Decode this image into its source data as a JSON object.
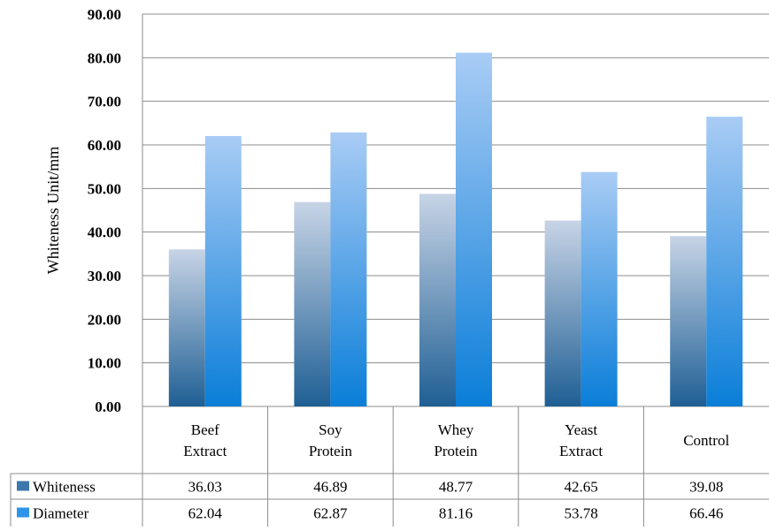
{
  "chart_data": {
    "type": "bar",
    "ylabel": "Whiteness Unit/mm",
    "ylim": [
      0,
      90
    ],
    "ytick_step": 10,
    "ytick_labels": [
      "0.00",
      "10.00",
      "20.00",
      "30.00",
      "40.00",
      "50.00",
      "60.00",
      "70.00",
      "80.00",
      "90.00"
    ],
    "grid": true,
    "categories": [
      [
        "Beef",
        "Extract"
      ],
      [
        "Soy",
        "Protein"
      ],
      [
        "Whey",
        "Protein"
      ],
      [
        "Yeast",
        "Extract"
      ],
      [
        "Control"
      ]
    ],
    "series": [
      {
        "name": "Whiteness",
        "values": [
          36.03,
          46.89,
          48.77,
          42.65,
          39.08
        ],
        "value_labels": [
          "36.03",
          "46.89",
          "48.77",
          "42.65",
          "39.08"
        ],
        "color_top": "#c7d4e6",
        "color_bottom": "#1f5f94",
        "legend_color": "#3d77ab"
      },
      {
        "name": "Diameter",
        "values": [
          62.04,
          62.87,
          81.16,
          53.78,
          66.46
        ],
        "value_labels": [
          "62.04",
          "62.87",
          "81.16",
          "53.78",
          "66.46"
        ],
        "color_top": "#a9ccf5",
        "color_bottom": "#0a7ed8",
        "legend_color": "#2f94ea"
      }
    ],
    "legend_placement": "data-table"
  }
}
